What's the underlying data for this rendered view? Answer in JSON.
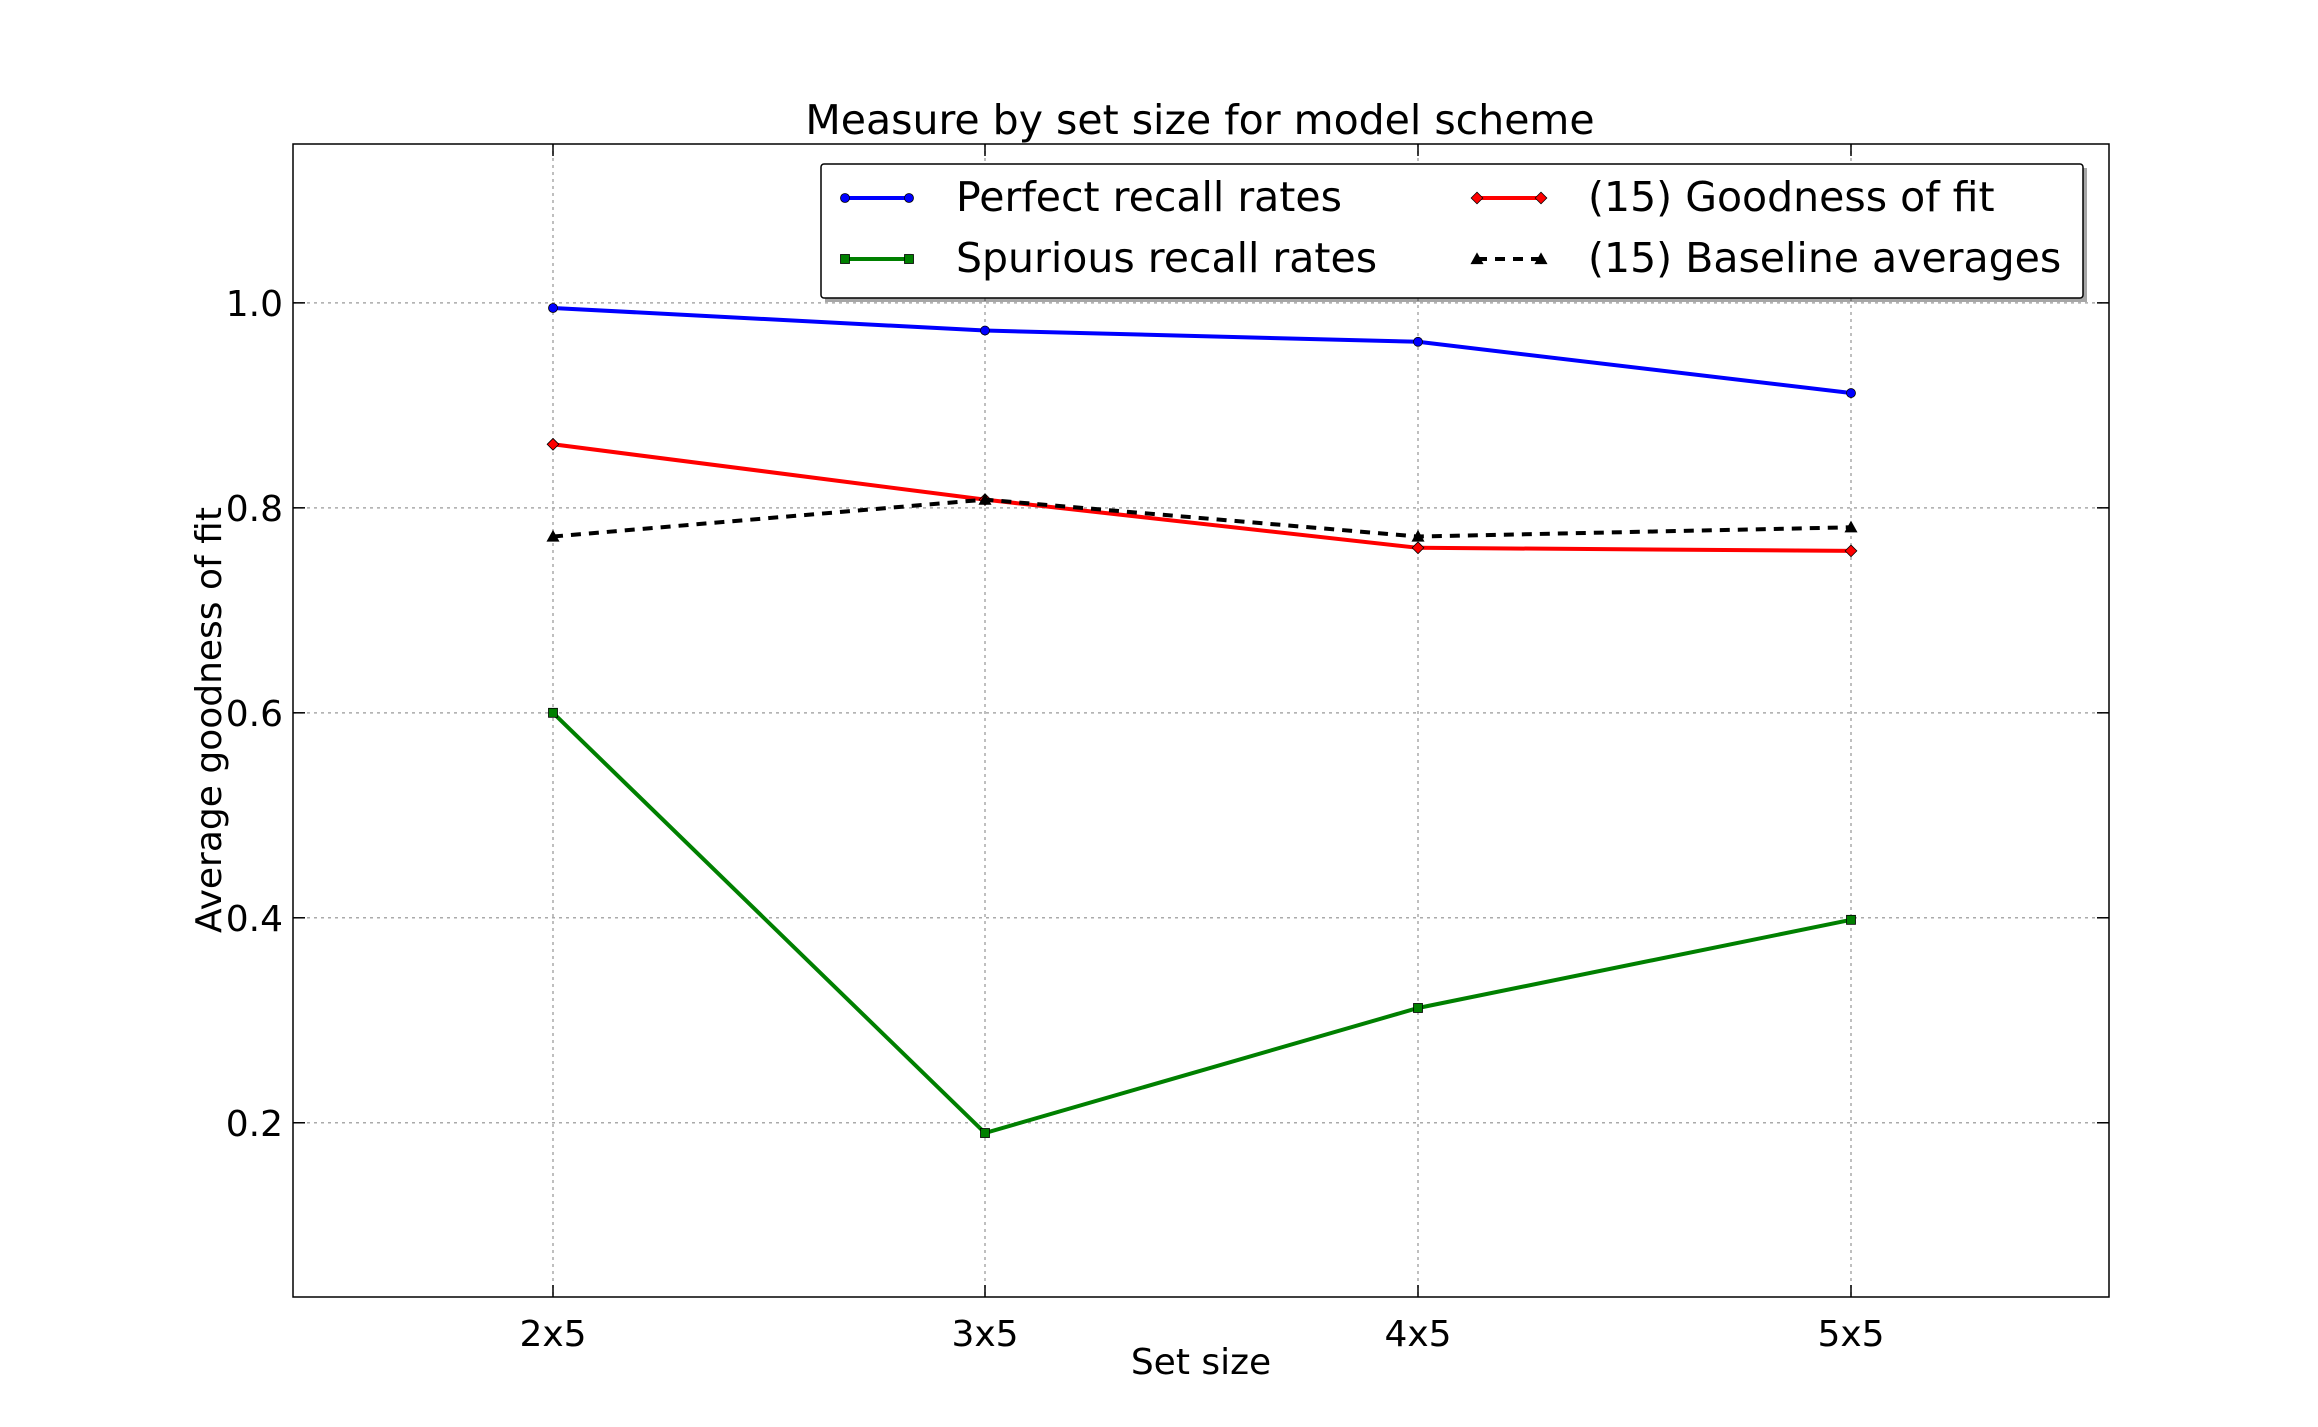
{
  "chart_data": {
    "type": "line",
    "title": "Measure by set size for model scheme",
    "xlabel": "Set size",
    "ylabel": "Average goodness of fit",
    "categories": [
      "2x5",
      "3x5",
      "4x5",
      "5x5"
    ],
    "ylim": [
      0.03,
      1.155
    ],
    "yticks": [
      0.2,
      0.4,
      0.6,
      0.8,
      1.0
    ],
    "ytick_labels": [
      "0.2",
      "0.4",
      "0.6",
      "0.8",
      "1.0"
    ],
    "grid": true,
    "legend_position": "top-right",
    "series": [
      {
        "name": "Perfect recall rates",
        "color": "#0000ff",
        "marker": "circle",
        "dashed": false,
        "values": [
          0.995,
          0.973,
          0.962,
          0.912
        ]
      },
      {
        "name": "Spurious recall rates",
        "color": "#008000",
        "marker": "square",
        "dashed": false,
        "values": [
          0.6,
          0.19,
          0.312,
          0.398
        ]
      },
      {
        "name": "(15) Goodness of fit",
        "color": "#ff0000",
        "marker": "diamond",
        "dashed": false,
        "values": [
          0.862,
          0.808,
          0.761,
          0.758
        ]
      },
      {
        "name": "(15) Baseline averages",
        "color": "#000000",
        "marker": "triangle",
        "dashed": true,
        "values": [
          0.772,
          0.808,
          0.772,
          0.781
        ]
      }
    ]
  }
}
